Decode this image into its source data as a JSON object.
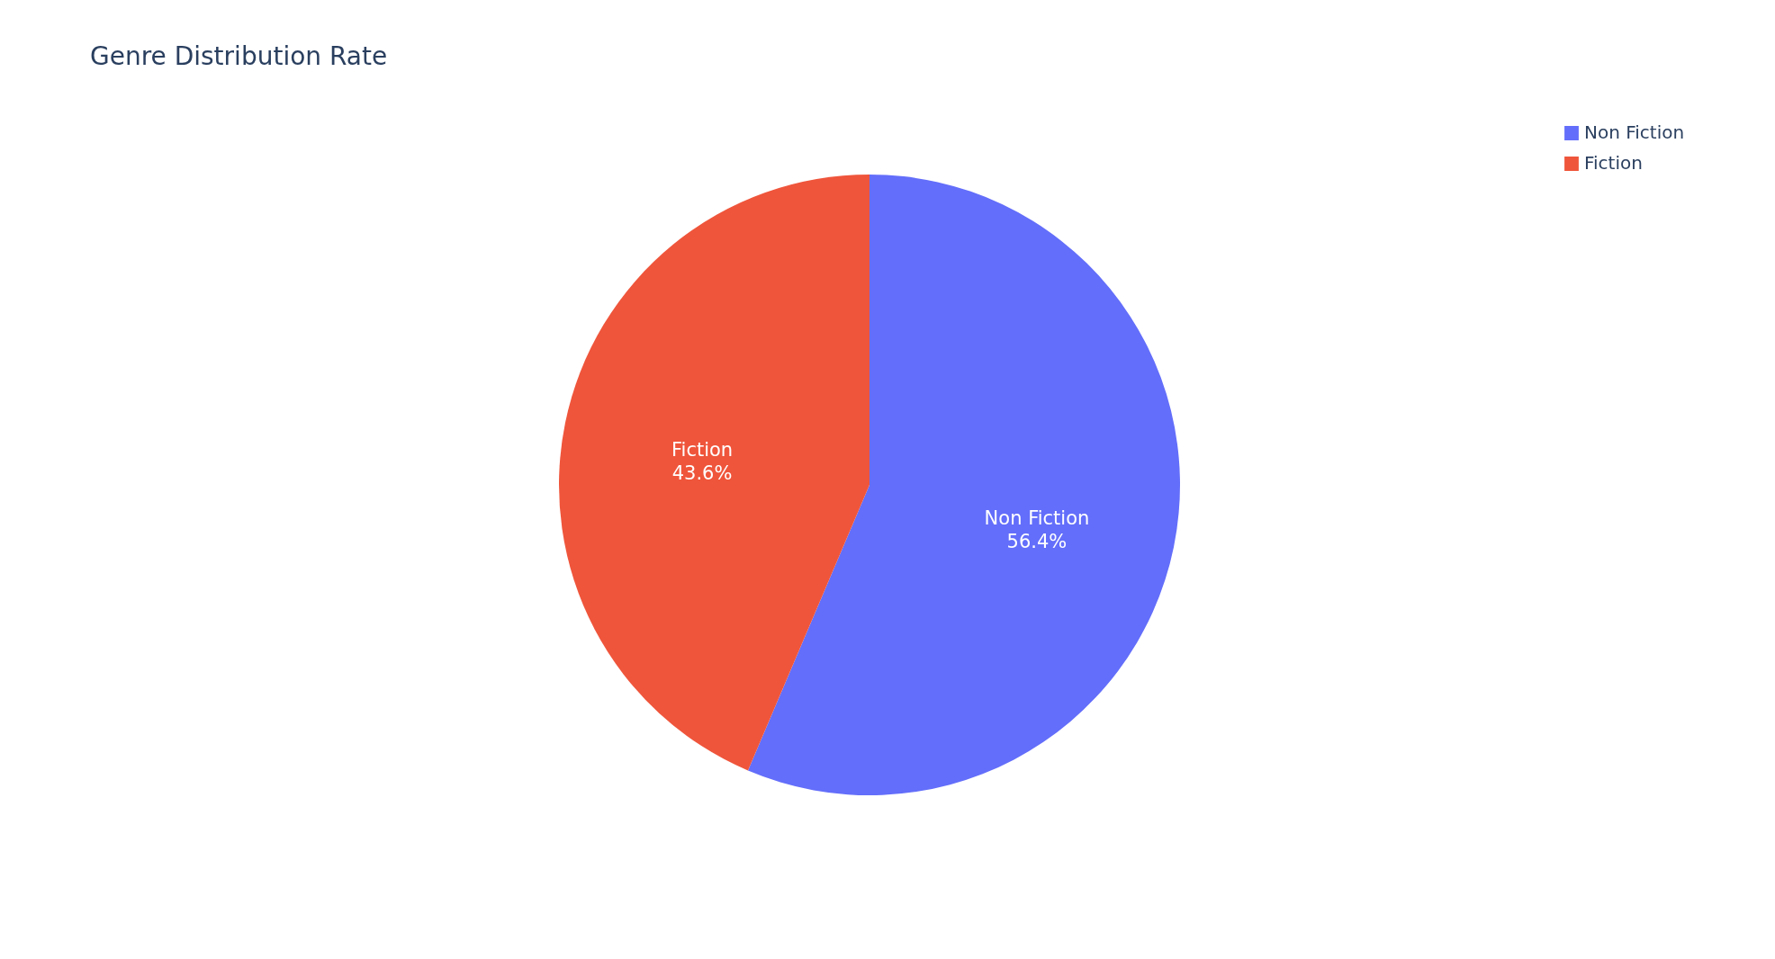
{
  "chart_data": {
    "type": "pie",
    "title": "Genre Distribution Rate",
    "categories": [
      "Non Fiction",
      "Fiction"
    ],
    "values": [
      56.4,
      43.6
    ],
    "colors": [
      "#636efa",
      "#ef553b"
    ],
    "value_labels": [
      "56.4%",
      "43.6%"
    ],
    "legend": "top right"
  }
}
